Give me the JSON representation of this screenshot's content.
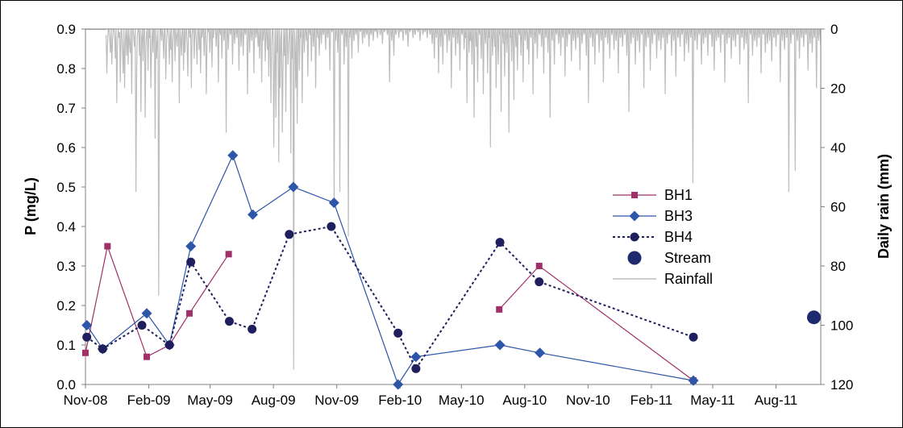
{
  "chart_data": {
    "type": "line",
    "title": "",
    "ylabel": "P (mg/L)",
    "y2label": "Daily rain (mm)",
    "ylim": [
      0,
      0.9
    ],
    "y2lim": [
      120,
      0
    ],
    "y2_reversed": true,
    "y_ticks": [
      "0.0",
      "0.1",
      "0.2",
      "0.3",
      "0.4",
      "0.5",
      "0.6",
      "0.7",
      "0.8",
      "0.9"
    ],
    "y2_ticks": [
      "0",
      "20",
      "40",
      "60",
      "80",
      "100",
      "120"
    ],
    "x_ticks": [
      "Nov-08",
      "Feb-09",
      "May-09",
      "Aug-09",
      "Nov-09",
      "Feb-10",
      "May-10",
      "Aug-10",
      "Nov-10",
      "Feb-11",
      "May-11",
      "Aug-11"
    ],
    "x_range": [
      "2008-11-01",
      "2011-10-05"
    ],
    "grid": false,
    "legend_position": "right",
    "series": [
      {
        "name": "BH1",
        "color": "#a0306a",
        "marker": "square",
        "line": "solid",
        "segments": [
          [
            [
              "2008-11-01",
              0.08
            ],
            [
              "2008-12-03",
              0.35
            ],
            [
              "2009-01-29",
              0.07
            ],
            [
              "2009-03-03",
              0.1
            ],
            [
              "2009-04-01",
              0.18
            ],
            [
              "2009-05-28",
              0.33
            ]
          ],
          [
            [
              "2010-06-25",
              0.19
            ],
            [
              "2010-08-22",
              0.3
            ],
            [
              "2011-04-03",
              0.01
            ]
          ]
        ]
      },
      {
        "name": "BH3",
        "color": "#2d55a8",
        "marker": "diamond",
        "line": "solid",
        "segments": [
          [
            [
              "2008-11-03",
              0.15
            ],
            [
              "2008-11-26",
              0.09
            ],
            [
              "2009-01-29",
              0.18
            ],
            [
              "2009-03-03",
              0.1
            ],
            [
              "2009-04-03",
              0.35
            ],
            [
              "2009-06-03",
              0.58
            ],
            [
              "2009-07-02",
              0.43
            ],
            [
              "2009-08-30",
              0.5
            ],
            [
              "2009-10-28",
              0.46
            ],
            [
              "2010-01-29",
              0.0
            ],
            [
              "2010-02-24",
              0.07
            ],
            [
              "2010-06-26",
              0.1
            ],
            [
              "2010-08-23",
              0.08
            ],
            [
              "2011-04-03",
              0.01
            ]
          ]
        ]
      },
      {
        "name": "BH4",
        "color": "#1f1f5e",
        "marker": "circle",
        "line": "dotted",
        "segments": [
          [
            [
              "2008-11-03",
              0.12
            ],
            [
              "2008-11-26",
              0.09
            ],
            [
              "2009-01-22",
              0.15
            ],
            [
              "2009-03-03",
              0.1
            ],
            [
              "2009-04-03",
              0.31
            ],
            [
              "2009-05-29",
              0.16
            ],
            [
              "2009-07-01",
              0.14
            ],
            [
              "2009-08-24",
              0.38
            ],
            [
              "2009-10-24",
              0.4
            ],
            [
              "2010-01-29",
              0.13
            ],
            [
              "2010-02-24",
              0.04
            ],
            [
              "2010-06-26",
              0.36
            ],
            [
              "2010-08-22",
              0.26
            ],
            [
              "2011-04-03",
              0.12
            ]
          ]
        ]
      },
      {
        "name": "Stream",
        "color": "#1f2a6e",
        "marker": "big-circle",
        "line": "none",
        "segments": [
          [
            [
              "2011-09-25",
              0.17
            ]
          ]
        ]
      },
      {
        "name": "Rainfall",
        "color": "#bdbdbd",
        "axis": "right",
        "line": "solid",
        "rain_start": "2008-12-01",
        "rain_end": "2011-10-05",
        "values_mm": [
          2,
          15,
          5,
          0,
          0,
          3,
          8,
          0,
          12,
          4,
          0,
          0,
          2,
          10,
          0,
          25,
          6,
          0,
          3,
          1,
          18,
          0,
          0,
          7,
          15,
          0,
          20,
          4,
          0,
          9,
          0,
          12,
          0,
          5,
          8,
          0,
          22,
          0,
          0,
          3,
          6,
          0,
          55,
          14,
          2,
          0,
          0,
          9,
          0,
          28,
          3,
          0,
          11,
          0,
          0,
          30,
          6,
          1,
          0,
          14,
          0,
          3,
          0,
          20,
          5,
          0,
          8,
          0,
          0,
          37,
          0,
          10,
          4,
          0,
          90,
          12,
          0,
          0,
          4,
          0,
          2,
          10,
          0,
          0,
          17,
          5,
          0,
          0,
          3,
          12,
          0,
          7,
          0,
          18,
          4,
          0,
          0,
          11,
          0,
          2,
          6,
          0,
          0,
          25,
          0,
          3,
          9,
          0,
          0,
          14,
          0,
          8,
          0,
          0,
          5,
          16,
          0,
          0,
          3,
          0,
          20,
          2,
          0,
          0,
          10,
          0,
          0,
          4,
          12,
          0,
          0,
          7,
          0,
          15,
          0,
          3,
          0,
          0,
          9,
          0,
          0,
          22,
          5,
          0,
          1,
          0,
          8,
          0,
          0,
          13,
          0,
          3,
          0,
          0,
          0,
          6,
          0,
          0,
          18,
          0,
          0,
          2,
          0,
          10,
          0,
          0,
          4,
          0,
          0,
          35,
          0,
          0,
          7,
          0,
          0,
          2,
          0,
          0,
          12,
          0,
          0,
          5,
          0,
          0,
          3,
          0,
          0,
          14,
          0,
          0,
          6,
          0,
          0,
          9,
          0,
          0,
          2,
          0,
          0,
          22,
          0,
          0,
          8,
          0,
          0,
          4,
          0,
          0,
          15,
          0,
          0,
          3,
          0,
          0,
          6,
          0,
          10,
          0,
          0,
          18,
          0,
          4,
          0,
          0,
          11,
          0,
          0,
          7,
          0,
          16,
          0,
          0,
          25,
          5,
          0,
          0,
          40,
          12,
          0,
          30,
          0,
          8,
          0,
          45,
          0,
          20,
          3,
          0,
          35,
          15,
          0,
          9,
          0,
          28,
          0,
          0,
          12,
          6,
          0,
          0,
          42,
          0,
          10,
          0,
          115,
          0,
          5,
          20,
          0,
          32,
          0,
          0,
          14,
          0,
          3,
          0,
          25,
          0,
          0,
          8,
          0,
          0,
          4,
          0,
          16,
          0,
          0,
          2,
          0,
          11,
          0,
          0,
          6,
          0,
          0,
          20,
          0,
          0,
          3,
          0,
          9,
          0,
          0,
          5,
          0,
          0,
          2,
          0,
          0,
          7,
          0,
          0,
          3,
          0,
          0,
          14,
          0,
          0,
          1,
          0,
          0,
          60,
          0,
          4,
          0,
          0,
          8,
          0,
          0,
          55,
          0,
          0,
          2,
          0,
          0,
          12,
          0,
          0,
          6,
          0,
          0,
          70,
          0,
          3,
          0,
          0,
          10,
          0,
          0,
          4,
          0,
          0,
          2,
          0,
          0,
          8,
          0,
          0,
          1,
          0,
          0,
          5,
          0,
          0,
          3,
          0,
          0,
          2,
          0,
          0,
          6,
          0,
          0,
          2,
          0,
          0,
          4,
          0,
          0,
          1,
          0,
          0,
          3,
          0,
          0,
          0,
          2,
          0,
          0,
          5,
          0,
          0,
          1,
          0,
          0,
          0,
          2,
          0,
          0,
          18,
          0,
          0,
          4,
          0,
          0,
          9,
          0,
          0,
          2,
          0,
          0,
          0,
          3,
          0,
          0,
          1,
          0,
          0,
          4,
          0,
          0,
          0,
          2,
          0,
          0,
          6,
          0,
          0,
          1,
          0,
          0,
          0,
          3,
          0,
          0,
          2,
          0,
          0,
          0,
          1,
          0,
          0,
          4,
          0,
          0,
          0,
          2,
          0,
          0,
          1,
          0,
          0,
          3,
          0,
          0,
          0,
          2,
          0,
          0,
          5,
          0,
          0,
          10,
          0,
          0,
          3,
          0,
          0,
          15,
          0,
          0,
          6,
          0,
          0,
          12,
          0,
          0,
          2,
          0,
          0,
          8,
          0,
          0,
          4,
          0,
          0,
          20,
          0,
          0,
          3,
          0,
          0,
          9,
          0,
          0,
          5,
          0,
          0,
          14,
          0,
          0,
          2,
          0,
          0,
          7,
          0,
          3,
          0,
          25,
          0,
          0,
          8,
          0,
          4,
          0,
          12,
          0,
          0,
          30,
          0,
          0,
          6,
          0,
          18,
          0,
          0,
          2,
          0,
          10,
          0,
          0,
          22,
          0,
          0,
          5,
          0,
          0,
          15,
          0,
          3,
          0,
          40,
          0,
          0,
          9,
          0,
          0,
          6,
          0,
          20,
          0,
          0,
          12,
          0,
          2,
          0,
          28,
          0,
          0,
          5,
          0,
          16,
          0,
          0,
          8,
          0,
          0,
          35,
          0,
          3,
          0,
          11,
          0,
          0,
          24,
          0,
          0,
          6,
          0,
          14,
          0,
          0,
          2,
          0,
          9,
          0,
          0,
          18,
          0,
          0,
          4,
          0,
          0,
          7,
          0,
          12,
          0,
          0,
          3,
          0,
          0,
          22,
          0,
          0,
          5,
          0,
          0,
          10,
          0,
          0,
          2,
          0,
          0,
          6,
          0,
          0,
          15,
          0,
          0,
          3,
          0,
          0,
          8,
          0,
          0,
          30,
          0,
          0,
          4,
          0,
          0,
          12,
          0,
          0,
          2,
          0,
          0,
          5,
          0,
          0,
          9,
          0,
          0,
          3,
          0,
          0,
          16,
          0,
          0,
          6,
          0,
          0,
          2,
          0,
          0,
          11,
          0,
          0,
          4,
          0,
          0,
          7,
          0,
          0,
          3,
          0,
          0,
          14,
          0,
          0,
          5,
          0,
          0,
          2,
          0,
          0,
          9,
          0,
          0,
          25,
          0,
          0,
          3,
          0,
          0,
          6,
          0,
          0,
          12,
          0,
          0,
          2,
          0,
          0,
          8,
          0,
          0,
          4,
          0,
          0,
          18,
          0,
          0,
          3,
          0,
          0,
          5,
          0,
          0,
          10,
          0,
          0,
          2,
          0,
          0,
          7,
          0,
          0,
          4,
          0,
          0,
          15,
          0,
          0,
          3,
          0,
          0,
          6,
          0,
          0,
          2,
          0,
          0,
          9,
          0,
          0,
          28,
          0,
          0,
          5,
          0,
          0,
          3,
          0,
          0,
          12,
          0,
          0,
          4,
          0,
          0,
          8,
          0,
          0,
          2,
          0,
          0,
          20,
          0,
          0,
          6,
          0,
          0,
          3,
          0,
          0,
          14,
          0,
          0,
          5,
          0,
          0,
          2,
          0,
          0,
          10,
          0,
          0,
          4,
          0,
          0,
          7,
          0,
          0,
          3,
          0,
          0,
          22,
          0,
          0,
          5,
          0,
          0,
          2,
          0,
          0,
          9,
          0,
          0,
          4,
          0,
          0,
          16,
          0,
          0,
          3,
          0,
          0,
          6,
          0,
          0,
          2,
          0,
          0,
          11,
          0,
          0,
          5,
          0,
          0,
          8,
          0,
          0,
          3,
          0,
          0,
          52,
          0,
          0,
          4,
          0,
          0,
          7,
          0,
          0,
          2,
          0,
          0,
          12,
          0,
          0,
          5,
          0,
          0,
          3,
          0,
          0,
          9,
          0,
          0,
          2,
          0,
          0,
          6,
          0,
          0,
          14,
          0,
          0,
          4,
          0,
          0,
          3,
          0,
          0,
          8,
          0,
          0,
          2,
          0,
          0,
          18,
          0,
          0,
          5,
          0,
          0,
          3,
          0,
          0,
          10,
          0,
          0,
          4,
          0,
          0,
          6,
          0,
          0,
          2,
          0,
          0,
          12,
          0,
          0,
          3,
          0,
          0,
          7,
          0,
          0,
          5,
          0,
          0,
          25,
          0,
          0,
          2,
          0,
          0,
          9,
          0,
          0,
          4,
          0,
          0,
          6,
          0,
          0,
          3,
          0,
          0,
          15,
          0,
          0,
          2,
          0,
          0,
          8,
          0,
          0,
          5,
          0,
          0,
          4,
          0,
          0,
          11,
          0,
          0,
          3,
          0,
          0,
          6,
          0,
          0,
          2,
          0,
          0,
          18,
          0,
          0,
          4,
          0,
          0,
          7,
          0,
          0,
          3,
          0,
          0,
          55,
          0,
          0,
          5,
          0,
          0,
          2,
          0,
          0,
          48,
          0,
          0,
          4,
          0,
          0,
          10,
          0,
          0,
          3,
          0,
          0,
          6,
          0,
          0,
          2,
          0,
          0,
          14,
          0,
          0,
          5,
          0,
          0,
          8,
          0,
          0,
          3,
          0,
          0,
          20,
          0,
          0,
          4,
          0,
          0,
          6
        ]
      }
    ]
  }
}
